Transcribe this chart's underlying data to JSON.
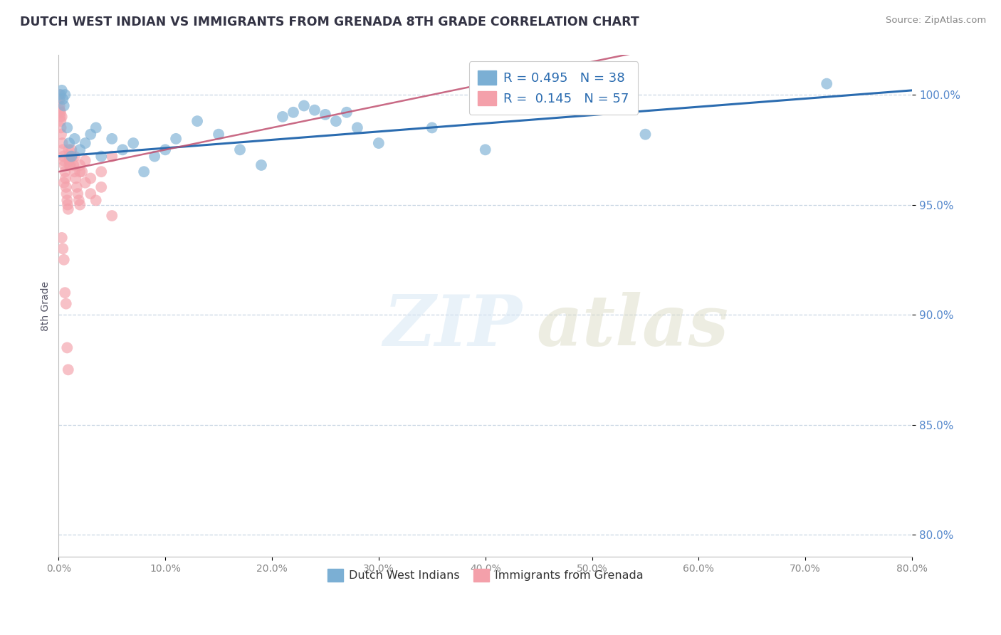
{
  "title": "DUTCH WEST INDIAN VS IMMIGRANTS FROM GRENADA 8TH GRADE CORRELATION CHART",
  "source": "Source: ZipAtlas.com",
  "ylabel": "8th Grade",
  "x_ticks": [
    0.0,
    10.0,
    20.0,
    30.0,
    40.0,
    50.0,
    60.0,
    70.0,
    80.0
  ],
  "y_ticks": [
    80.0,
    85.0,
    90.0,
    95.0,
    100.0
  ],
  "xlim": [
    0.0,
    80.0
  ],
  "ylim": [
    79.0,
    101.8
  ],
  "legend_blue_label": "Dutch West Indians",
  "legend_pink_label": "Immigrants from Grenada",
  "R_blue": 0.495,
  "N_blue": 38,
  "R_pink": 0.145,
  "N_pink": 57,
  "blue_color": "#7BAFD4",
  "pink_color": "#F4A0AA",
  "blue_line_color": "#2B6CB0",
  "pink_line_color": "#C05070",
  "title_color": "#333344",
  "source_color": "#888888",
  "ylabel_color": "#555566",
  "ytick_color": "#5588CC",
  "xtick_color": "#888888",
  "grid_color": "#BBCCDD",
  "blue_x": [
    0.2,
    0.3,
    0.4,
    0.5,
    0.6,
    0.8,
    1.0,
    1.2,
    1.5,
    2.0,
    2.5,
    3.0,
    3.5,
    4.0,
    5.0,
    6.0,
    7.0,
    8.0,
    9.0,
    10.0,
    11.0,
    13.0,
    15.0,
    17.0,
    19.0,
    21.0,
    22.0,
    23.0,
    24.0,
    25.0,
    26.0,
    27.0,
    28.0,
    30.0,
    35.0,
    40.0,
    55.0,
    72.0
  ],
  "blue_y": [
    100.0,
    100.2,
    99.8,
    99.5,
    100.0,
    98.5,
    97.8,
    97.2,
    98.0,
    97.5,
    97.8,
    98.2,
    98.5,
    97.2,
    98.0,
    97.5,
    97.8,
    96.5,
    97.2,
    97.5,
    98.0,
    98.8,
    98.2,
    97.5,
    96.8,
    99.0,
    99.2,
    99.5,
    99.3,
    99.1,
    98.8,
    99.2,
    98.5,
    97.8,
    98.5,
    97.5,
    98.2,
    100.5
  ],
  "pink_x": [
    0.05,
    0.08,
    0.1,
    0.12,
    0.15,
    0.18,
    0.2,
    0.22,
    0.25,
    0.3,
    0.35,
    0.4,
    0.45,
    0.5,
    0.55,
    0.6,
    0.65,
    0.7,
    0.75,
    0.8,
    0.85,
    0.9,
    0.95,
    1.0,
    1.1,
    1.2,
    1.3,
    1.4,
    1.5,
    1.6,
    1.7,
    1.8,
    1.9,
    2.0,
    2.2,
    2.5,
    3.0,
    3.5,
    4.0,
    5.0,
    1.0,
    1.5,
    2.0,
    2.5,
    3.0,
    4.0,
    5.0,
    0.5,
    1.0,
    2.0,
    0.3,
    0.4,
    0.5,
    0.6,
    0.7,
    0.8,
    0.9
  ],
  "pink_y": [
    100.0,
    99.8,
    99.5,
    99.3,
    99.0,
    99.2,
    98.8,
    98.5,
    98.2,
    99.0,
    97.8,
    97.5,
    97.2,
    97.0,
    96.8,
    96.5,
    96.2,
    95.8,
    95.5,
    95.2,
    95.0,
    94.8,
    97.5,
    97.2,
    96.8,
    97.5,
    97.2,
    96.8,
    96.5,
    96.2,
    95.8,
    95.5,
    95.2,
    95.0,
    96.5,
    96.0,
    95.5,
    95.2,
    95.8,
    94.5,
    96.8,
    97.2,
    96.5,
    97.0,
    96.2,
    96.5,
    97.2,
    96.0,
    97.0,
    96.8,
    93.5,
    93.0,
    92.5,
    91.0,
    90.5,
    88.5,
    87.5
  ]
}
